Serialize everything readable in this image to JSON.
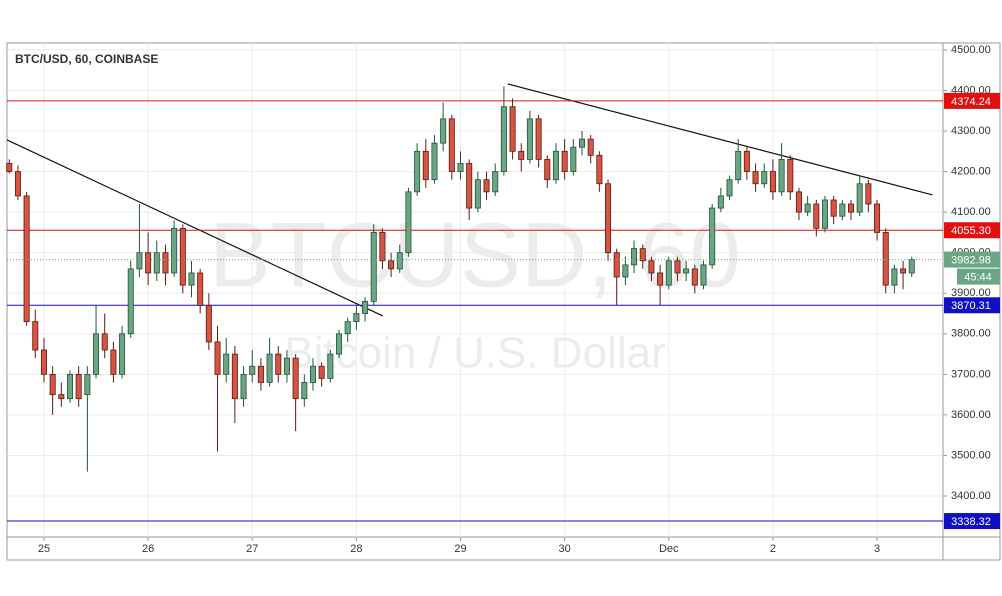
{
  "chart_data": {
    "type": "candlestick",
    "title": "BTC/USD, 60, COINBASE",
    "watermark": "BTCUSD, 60",
    "watermark_subtitle": "Bitcoin / U.S. Dollar",
    "up_color": "#6ba583",
    "down_color": "#d75442",
    "grid": true,
    "xlim": [
      -0.26,
      107.6
    ],
    "ylim": [
      3299,
      4517
    ],
    "xticks": [
      {
        "value": 4,
        "label": "25"
      },
      {
        "value": 16,
        "label": "26"
      },
      {
        "value": 28,
        "label": "27"
      },
      {
        "value": 40,
        "label": "28"
      },
      {
        "value": 52,
        "label": "29"
      },
      {
        "value": 64,
        "label": "30"
      },
      {
        "value": 76,
        "label": "Dec"
      },
      {
        "value": 88,
        "label": "2"
      },
      {
        "value": 100,
        "label": "3"
      }
    ],
    "yticks": [
      {
        "value": 3400,
        "label": "3400.00"
      },
      {
        "value": 3500,
        "label": "3500.00"
      },
      {
        "value": 3600,
        "label": "3600.00"
      },
      {
        "value": 3700,
        "label": "3700.00"
      },
      {
        "value": 3800,
        "label": "3800.00"
      },
      {
        "value": 3900,
        "label": "3900.00"
      },
      {
        "value": 4000,
        "label": "4000.00"
      },
      {
        "value": 4100,
        "label": "4100.00"
      },
      {
        "value": 4200,
        "label": "4200.00"
      },
      {
        "value": 4300,
        "label": "4300.00"
      },
      {
        "value": 4400,
        "label": "4400.00"
      },
      {
        "value": 4500,
        "label": "4500.00"
      }
    ],
    "candles": [
      [
        4220,
        4230,
        4195,
        4200
      ],
      [
        4200,
        4215,
        4130,
        4140
      ],
      [
        4140,
        4150,
        3820,
        3830
      ],
      [
        3830,
        3860,
        3740,
        3760
      ],
      [
        3760,
        3790,
        3680,
        3700
      ],
      [
        3700,
        3720,
        3600,
        3650
      ],
      [
        3650,
        3680,
        3620,
        3640
      ],
      [
        3640,
        3710,
        3630,
        3700
      ],
      [
        3700,
        3720,
        3620,
        3640
      ],
      [
        3650,
        3720,
        3460,
        3700
      ],
      [
        3700,
        3870,
        3690,
        3800
      ],
      [
        3800,
        3850,
        3740,
        3760
      ],
      [
        3760,
        3780,
        3680,
        3700
      ],
      [
        3700,
        3820,
        3690,
        3800
      ],
      [
        3800,
        3980,
        3790,
        3960
      ],
      [
        3960,
        4120,
        3940,
        4000
      ],
      [
        4000,
        4050,
        3920,
        3950
      ],
      [
        3950,
        4030,
        3930,
        4000
      ],
      [
        4000,
        4020,
        3920,
        3950
      ],
      [
        3950,
        4080,
        3940,
        4060
      ],
      [
        4060,
        4070,
        3900,
        3920
      ],
      [
        3920,
        3980,
        3890,
        3950
      ],
      [
        3950,
        3960,
        3850,
        3870
      ],
      [
        3870,
        3900,
        3760,
        3780
      ],
      [
        3780,
        3820,
        3510,
        3700
      ],
      [
        3700,
        3790,
        3680,
        3750
      ],
      [
        3750,
        3770,
        3580,
        3640
      ],
      [
        3640,
        3720,
        3620,
        3700
      ],
      [
        3700,
        3760,
        3680,
        3720
      ],
      [
        3720,
        3740,
        3660,
        3680
      ],
      [
        3680,
        3790,
        3670,
        3750
      ],
      [
        3750,
        3770,
        3680,
        3700
      ],
      [
        3700,
        3760,
        3680,
        3740
      ],
      [
        3740,
        3750,
        3560,
        3640
      ],
      [
        3640,
        3700,
        3620,
        3680
      ],
      [
        3680,
        3740,
        3660,
        3720
      ],
      [
        3720,
        3730,
        3670,
        3690
      ],
      [
        3690,
        3760,
        3680,
        3750
      ],
      [
        3750,
        3810,
        3740,
        3800
      ],
      [
        3800,
        3840,
        3780,
        3830
      ],
      [
        3830,
        3870,
        3810,
        3850
      ],
      [
        3850,
        3890,
        3830,
        3880
      ],
      [
        3880,
        4070,
        3870,
        4050
      ],
      [
        4050,
        4060,
        3960,
        3980
      ],
      [
        3980,
        4000,
        3940,
        3960
      ],
      [
        3960,
        4020,
        3950,
        4000
      ],
      [
        4000,
        4160,
        3990,
        4150
      ],
      [
        4150,
        4270,
        4140,
        4250
      ],
      [
        4250,
        4280,
        4160,
        4180
      ],
      [
        4180,
        4290,
        4170,
        4270
      ],
      [
        4270,
        4370,
        4250,
        4330
      ],
      [
        4330,
        4340,
        4180,
        4200
      ],
      [
        4200,
        4250,
        4180,
        4220
      ],
      [
        4220,
        4230,
        4080,
        4110
      ],
      [
        4110,
        4200,
        4100,
        4180
      ],
      [
        4180,
        4200,
        4130,
        4150
      ],
      [
        4150,
        4220,
        4140,
        4200
      ],
      [
        4200,
        4410,
        4190,
        4360
      ],
      [
        4360,
        4380,
        4230,
        4250
      ],
      [
        4250,
        4270,
        4200,
        4230
      ],
      [
        4230,
        4350,
        4220,
        4330
      ],
      [
        4330,
        4340,
        4210,
        4230
      ],
      [
        4230,
        4240,
        4160,
        4180
      ],
      [
        4180,
        4270,
        4170,
        4250
      ],
      [
        4250,
        4280,
        4180,
        4200
      ],
      [
        4200,
        4280,
        4190,
        4260
      ],
      [
        4260,
        4300,
        4240,
        4280
      ],
      [
        4280,
        4290,
        4220,
        4240
      ],
      [
        4240,
        4250,
        4150,
        4170
      ],
      [
        4170,
        4180,
        3980,
        4000
      ],
      [
        4000,
        4010,
        3870,
        3940
      ],
      [
        3940,
        3990,
        3920,
        3970
      ],
      [
        3970,
        4030,
        3950,
        4010
      ],
      [
        4010,
        4020,
        3960,
        3980
      ],
      [
        3980,
        3990,
        3930,
        3950
      ],
      [
        3950,
        3970,
        3870,
        3920
      ],
      [
        3920,
        3990,
        3910,
        3980
      ],
      [
        3980,
        3990,
        3930,
        3950
      ],
      [
        3950,
        3980,
        3930,
        3960
      ],
      [
        3960,
        3970,
        3900,
        3920
      ],
      [
        3920,
        3980,
        3910,
        3970
      ],
      [
        3970,
        4120,
        3960,
        4110
      ],
      [
        4110,
        4160,
        4100,
        4140
      ],
      [
        4140,
        4190,
        4130,
        4180
      ],
      [
        4180,
        4280,
        4170,
        4250
      ],
      [
        4250,
        4260,
        4180,
        4200
      ],
      [
        4200,
        4220,
        4150,
        4170
      ],
      [
        4170,
        4220,
        4160,
        4200
      ],
      [
        4200,
        4230,
        4130,
        4150
      ],
      [
        4150,
        4270,
        4140,
        4230
      ],
      [
        4230,
        4240,
        4130,
        4150
      ],
      [
        4150,
        4160,
        4080,
        4100
      ],
      [
        4100,
        4140,
        4090,
        4120
      ],
      [
        4120,
        4130,
        4040,
        4060
      ],
      [
        4060,
        4140,
        4050,
        4130
      ],
      [
        4130,
        4140,
        4070,
        4090
      ],
      [
        4090,
        4130,
        4080,
        4120
      ],
      [
        4120,
        4130,
        4080,
        4100
      ],
      [
        4100,
        4190,
        4090,
        4170
      ],
      [
        4170,
        4180,
        4100,
        4120
      ],
      [
        4120,
        4130,
        4030,
        4050
      ],
      [
        4050,
        4060,
        3900,
        3920
      ],
      [
        3920,
        3970,
        3900,
        3960
      ],
      [
        3960,
        3980,
        3910,
        3950
      ],
      [
        3950,
        3990,
        3940,
        3982.98
      ]
    ],
    "levels": [
      {
        "value": 4374.24,
        "color": "#e01010"
      },
      {
        "value": 4055.3,
        "label": "4055.30",
        "color": "#e01010"
      },
      {
        "value": 3870.31,
        "color": "#1010c0"
      },
      {
        "value": 3338.32,
        "color": "#1010c0"
      }
    ],
    "last_price": 3982.98,
    "last_color": "#6ba583",
    "countdown": "45:44",
    "trend_lines": [
      {
        "x": [
          -0.26,
          43.05
        ],
        "y": [
          4278,
          3844
        ]
      },
      {
        "x": [
          57.45,
          106.4
        ],
        "y": [
          4416,
          4142.4
        ]
      }
    ]
  }
}
